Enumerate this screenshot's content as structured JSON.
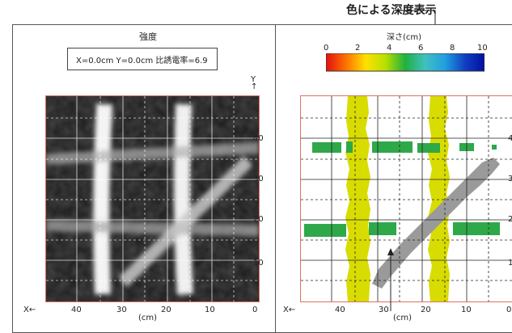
{
  "callout": {
    "text": "色による深度表示"
  },
  "left_panel": {
    "title": "強度",
    "info_text": "X=0.0cm Y=0.0cm 比誘電率=6.9",
    "x_axis": {
      "marker": "X←",
      "ticks": [
        "40",
        "30",
        "20",
        "10",
        "0"
      ],
      "unit": "(cm)"
    },
    "y_axis": {
      "marker": "Y",
      "arrow": "↑",
      "ticks": [
        "40",
        "30",
        "20",
        "10"
      ]
    }
  },
  "right_panel": {
    "title": "深さ(cm)",
    "colorbar": {
      "ticks": [
        "0",
        "2",
        "4",
        "6",
        "8",
        "10"
      ],
      "colors": [
        "#e01010",
        "#ff7000",
        "#ffe000",
        "#b8e000",
        "#20b040",
        "#40c0c0",
        "#20a0e0",
        "#1040c0",
        "#0010a0"
      ]
    },
    "x_axis": {
      "marker": "X←",
      "ticks": [
        "40",
        "30",
        "20",
        "10",
        "0"
      ],
      "unit": "(cm)"
    },
    "y_axis": {
      "ticks": [
        "4",
        "3",
        "2",
        "1"
      ]
    },
    "depth_colors": {
      "rebar_vertical": "#d8dc00",
      "rebar_horizontal": "#2fa84a",
      "rebar_diagonal": "#9a9a9a"
    }
  }
}
